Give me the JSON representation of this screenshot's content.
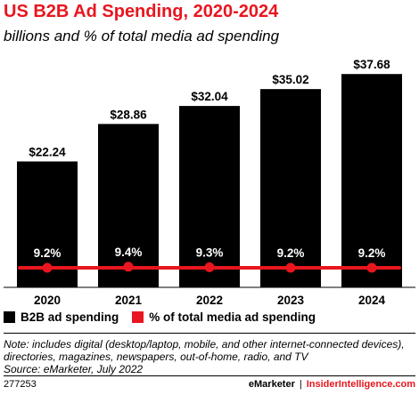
{
  "title": "US B2B Ad Spending, 2020-2024",
  "subtitle": "billions and % of total media ad spending",
  "chart_data": {
    "type": "bar",
    "categories": [
      "2020",
      "2021",
      "2022",
      "2023",
      "2024"
    ],
    "series": [
      {
        "name": "B2B ad spending",
        "type": "bar",
        "color": "#000000",
        "values": [
          22.24,
          28.86,
          32.04,
          35.02,
          37.68
        ],
        "labels": [
          "$22.24",
          "$28.86",
          "$32.04",
          "$35.02",
          "$37.68"
        ]
      },
      {
        "name": "% of total media ad spending",
        "type": "line",
        "color": "#e8161e",
        "values": [
          9.2,
          9.4,
          9.3,
          9.2,
          9.2
        ],
        "labels": [
          "9.2%",
          "9.4%",
          "9.3%",
          "9.2%",
          "9.2%"
        ]
      }
    ],
    "ylim": [
      0,
      38.5
    ],
    "grid": false,
    "legend": "bottom"
  },
  "legend": {
    "bar_label": "B2B ad spending",
    "line_label": "% of total media ad spending"
  },
  "note": {
    "line1": "Note: includes digital (desktop/laptop, mobile, and other internet-connected devices),",
    "line2": "directories, magazines, newspapers, out-of-home, radio, and TV",
    "line3": "Source: eMarketer, July 2022"
  },
  "footer": {
    "id": "277253",
    "brand1": "eMarketer",
    "sep": "|",
    "brand2": "InsiderIntelligence.com"
  },
  "colors": {
    "accent": "#e8161e",
    "bar": "#000000"
  }
}
